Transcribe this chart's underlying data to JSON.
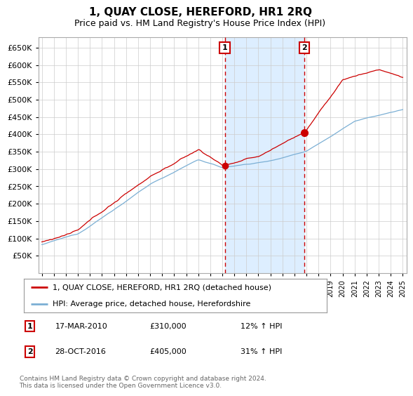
{
  "title": "1, QUAY CLOSE, HEREFORD, HR1 2RQ",
  "subtitle": "Price paid vs. HM Land Registry's House Price Index (HPI)",
  "ylabel_ticks": [
    50000,
    100000,
    150000,
    200000,
    250000,
    300000,
    350000,
    400000,
    450000,
    500000,
    550000,
    600000,
    650000
  ],
  "ylim": [
    0,
    680000
  ],
  "xlim_start": 1994.7,
  "xlim_end": 2025.3,
  "red_line_color": "#cc0000",
  "blue_line_color": "#7bafd4",
  "vline1_x": 2010.21,
  "vline2_x": 2016.83,
  "marker1_y": 310000,
  "marker2_y": 405000,
  "shade_color": "#ddeeff",
  "legend_label1": "1, QUAY CLOSE, HEREFORD, HR1 2RQ (detached house)",
  "legend_label2": "HPI: Average price, detached house, Herefordshire",
  "table_rows": [
    {
      "num": "1",
      "date": "17-MAR-2010",
      "price": "£310,000",
      "change": "12% ↑ HPI"
    },
    {
      "num": "2",
      "date": "28-OCT-2016",
      "price": "£405,000",
      "change": "31% ↑ HPI"
    }
  ],
  "footnote": "Contains HM Land Registry data © Crown copyright and database right 2024.\nThis data is licensed under the Open Government Licence v3.0.",
  "background_color": "#ffffff",
  "grid_color": "#cccccc"
}
